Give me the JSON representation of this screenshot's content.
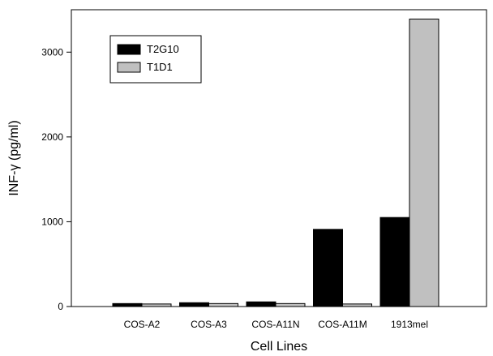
{
  "chart_data": {
    "type": "bar",
    "xlabel": "Cell Lines",
    "ylabel": "INF-γ (pg/ml)",
    "categories": [
      "COS-A2",
      "COS-A3",
      "COS-A11N",
      "COS-A11M",
      "1913mel"
    ],
    "series": [
      {
        "name": "T2G10",
        "values": [
          35,
          45,
          55,
          910,
          1050
        ],
        "color": "#000000"
      },
      {
        "name": "T1D1",
        "values": [
          30,
          35,
          35,
          30,
          3390
        ],
        "color": "#c0c0c0"
      }
    ],
    "ylim": [
      0,
      3500
    ],
    "yticks": [
      0,
      1000,
      2000,
      3000
    ],
    "yticks_labels": [
      "0",
      "1000",
      "2000",
      "3000"
    ],
    "grid": false,
    "legend_position": "top-left"
  }
}
